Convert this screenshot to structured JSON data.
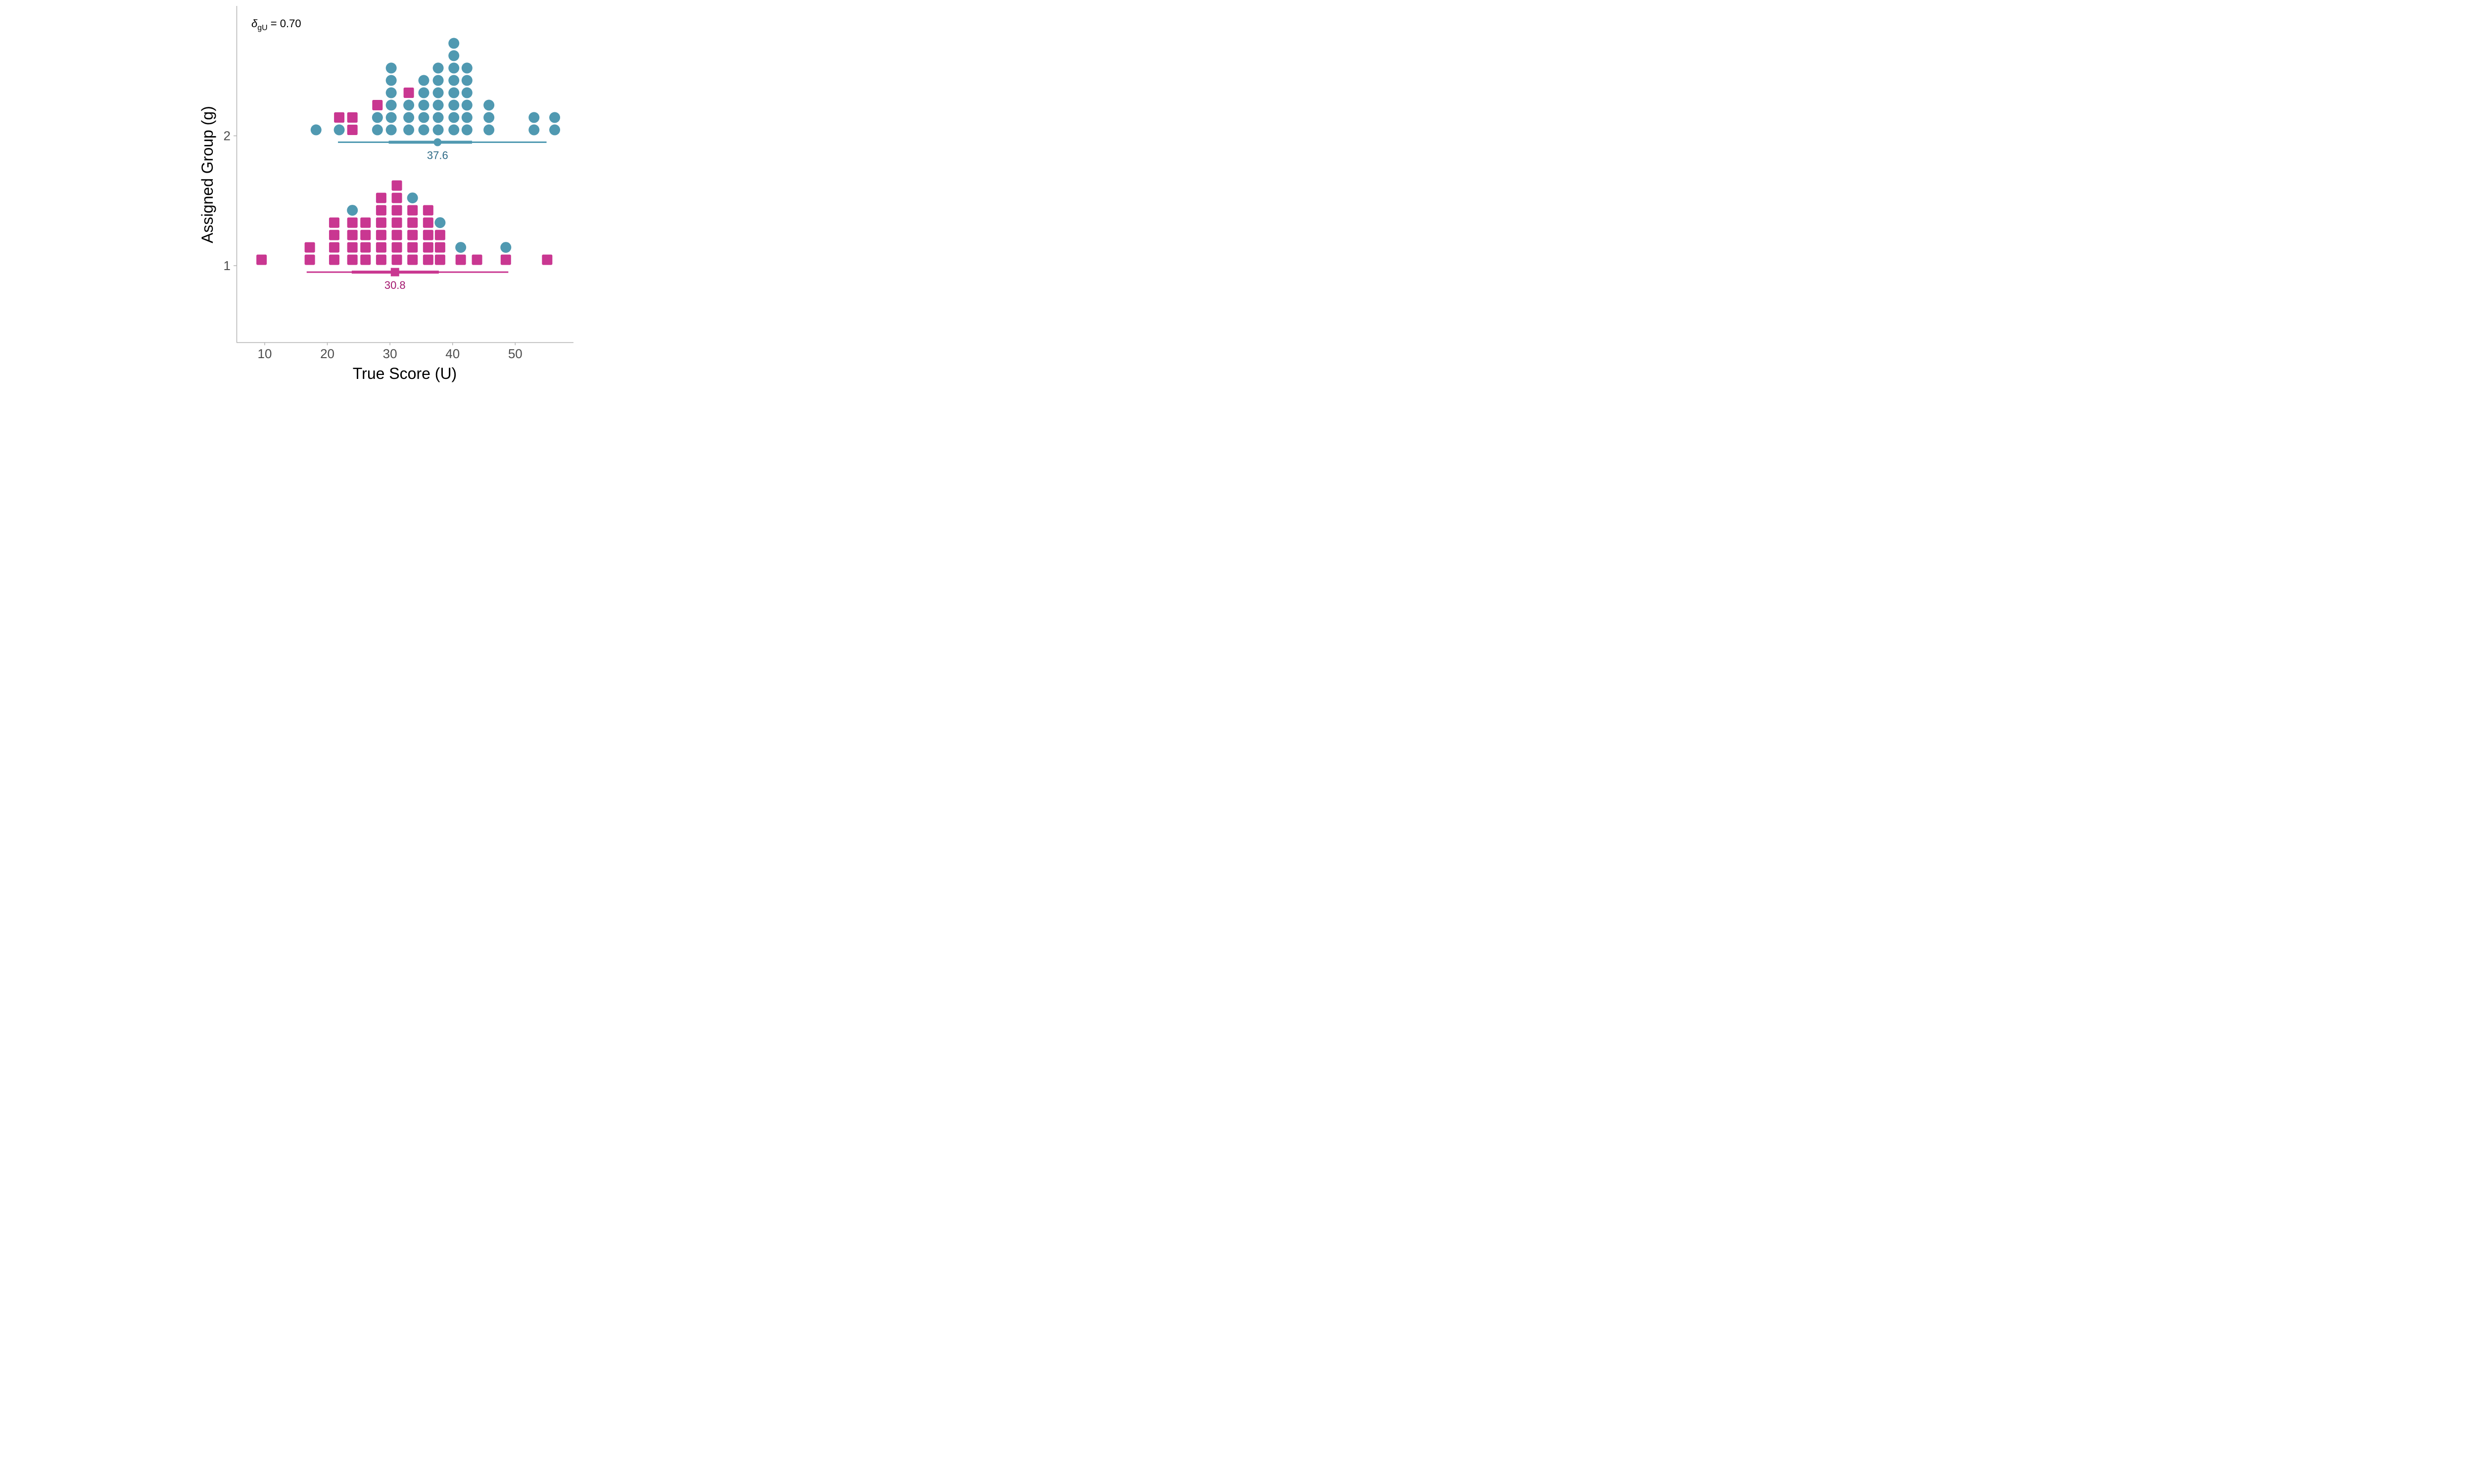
{
  "chart_data": {
    "type": "scatter",
    "subtype": "dot-stack",
    "xlabel": "True Score (U)",
    "ylabel": "Assigned Group (g)",
    "xlim": [
      5.5,
      59.3
    ],
    "ylim": [
      0.41,
      3.0
    ],
    "x_ticks": [
      "10",
      "20",
      "30",
      "40",
      "50"
    ],
    "y_ticks": [
      "1",
      "2"
    ],
    "grid": false,
    "annotation": {
      "delta": "δ",
      "subscript": "gU",
      "rest": " = 0.70"
    },
    "colors": {
      "circle": "#5099b1",
      "square": "#c93791",
      "mean_label_group2": "#2e6a86",
      "mean_label_group1": "#a3176e"
    },
    "groups": [
      {
        "group": 2,
        "mean_label": "37.6",
        "mean": 37.6,
        "interval_outer": [
          21.7,
          55.0
        ],
        "interval_inner": [
          29.8,
          43.1
        ],
        "marker": "circle",
        "color": "circle",
        "stacks": [
          {
            "x": 18.2,
            "items": [
              "circle"
            ]
          },
          {
            "x": 21.9,
            "items": [
              "circle",
              "square"
            ]
          },
          {
            "x": 24.0,
            "items": [
              "square",
              "square"
            ]
          },
          {
            "x": 28.0,
            "items": [
              "circle",
              "circle",
              "square"
            ]
          },
          {
            "x": 30.2,
            "items": [
              "circle",
              "circle",
              "circle",
              "circle",
              "circle",
              "circle"
            ]
          },
          {
            "x": 33.0,
            "items": [
              "circle",
              "circle",
              "circle",
              "square"
            ]
          },
          {
            "x": 35.4,
            "items": [
              "circle",
              "circle",
              "circle",
              "circle",
              "circle"
            ]
          },
          {
            "x": 37.7,
            "items": [
              "circle",
              "circle",
              "circle",
              "circle",
              "circle",
              "circle"
            ]
          },
          {
            "x": 40.2,
            "items": [
              "circle",
              "circle",
              "circle",
              "circle",
              "circle",
              "circle",
              "circle",
              "circle"
            ]
          },
          {
            "x": 42.3,
            "items": [
              "circle",
              "circle",
              "circle",
              "circle",
              "circle",
              "circle"
            ]
          },
          {
            "x": 45.8,
            "items": [
              "circle",
              "circle",
              "circle"
            ]
          },
          {
            "x": 53.0,
            "items": [
              "circle",
              "circle"
            ]
          },
          {
            "x": 56.3,
            "items": [
              "circle",
              "circle"
            ]
          }
        ]
      },
      {
        "group": 1,
        "mean_label": "30.8",
        "mean": 30.8,
        "interval_outer": [
          16.7,
          48.9
        ],
        "interval_inner": [
          23.9,
          37.8
        ],
        "marker": "square",
        "color": "square",
        "stacks": [
          {
            "x": 9.5,
            "items": [
              "square"
            ]
          },
          {
            "x": 17.2,
            "items": [
              "square",
              "square"
            ]
          },
          {
            "x": 21.1,
            "items": [
              "square",
              "square",
              "square",
              "square"
            ]
          },
          {
            "x": 24.0,
            "items": [
              "square",
              "square",
              "square",
              "square",
              "circle"
            ]
          },
          {
            "x": 26.1,
            "items": [
              "square",
              "square",
              "square",
              "square"
            ]
          },
          {
            "x": 28.6,
            "items": [
              "square",
              "square",
              "square",
              "square",
              "square",
              "square"
            ]
          },
          {
            "x": 31.1,
            "items": [
              "square",
              "square",
              "square",
              "square",
              "square",
              "square",
              "square"
            ]
          },
          {
            "x": 33.6,
            "items": [
              "square",
              "square",
              "square",
              "square",
              "square",
              "circle"
            ]
          },
          {
            "x": 36.1,
            "items": [
              "square",
              "square",
              "square",
              "square",
              "square"
            ]
          },
          {
            "x": 38.0,
            "items": [
              "square",
              "square",
              "square",
              "circle"
            ]
          },
          {
            "x": 41.3,
            "items": [
              "square",
              "circle"
            ]
          },
          {
            "x": 43.9,
            "items": [
              "square"
            ]
          },
          {
            "x": 48.5,
            "items": [
              "square",
              "circle"
            ]
          },
          {
            "x": 55.1,
            "items": [
              "square"
            ]
          }
        ]
      }
    ]
  }
}
